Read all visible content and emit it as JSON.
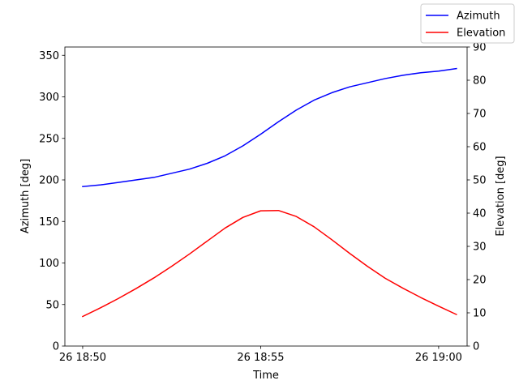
{
  "chart_data": {
    "type": "line",
    "xlabel": "Time",
    "ylabel_left": "Azimuth [deg]",
    "ylabel_right": "Elevation [deg]",
    "x_ticks": [
      "26 18:50",
      "26 18:55",
      "26 19:00"
    ],
    "x_tick_minutes": [
      0,
      5,
      10
    ],
    "xlim_minutes": [
      -0.5,
      10.8
    ],
    "ylim_left": [
      0,
      360
    ],
    "ylim_right": [
      0,
      90
    ],
    "yticks_left": [
      0,
      50,
      100,
      150,
      200,
      250,
      300,
      350
    ],
    "yticks_right": [
      0,
      10,
      20,
      30,
      40,
      50,
      60,
      70,
      80,
      90
    ],
    "grid": false,
    "legend_position": "top-right",
    "series": [
      {
        "name": "Azimuth",
        "axis": "left",
        "color": "#0000ff",
        "x_minutes": [
          0.0,
          0.5,
          1.0,
          1.5,
          2.0,
          2.5,
          3.0,
          3.5,
          4.0,
          4.5,
          5.0,
          5.5,
          6.0,
          6.5,
          7.0,
          7.5,
          8.0,
          8.5,
          9.0,
          9.5,
          10.0,
          10.5
        ],
        "values": [
          192,
          194,
          197,
          200,
          203,
          208,
          213,
          220,
          229,
          241,
          255,
          270,
          284,
          296,
          305,
          312,
          317,
          322,
          326,
          329,
          331,
          334
        ]
      },
      {
        "name": "Elevation",
        "axis": "right",
        "color": "#ff0000",
        "x_minutes": [
          0.0,
          0.5,
          1.0,
          1.5,
          2.0,
          2.5,
          3.0,
          3.5,
          4.0,
          4.5,
          5.0,
          5.5,
          6.0,
          6.5,
          7.0,
          7.5,
          8.0,
          8.5,
          9.0,
          9.5,
          10.0,
          10.5
        ],
        "values": [
          8.9,
          11.5,
          14.3,
          17.3,
          20.5,
          24.0,
          27.7,
          31.6,
          35.5,
          38.7,
          40.7,
          40.8,
          39.0,
          35.9,
          32.0,
          27.9,
          24.0,
          20.4,
          17.4,
          14.6,
          12.0,
          9.5
        ]
      }
    ]
  }
}
